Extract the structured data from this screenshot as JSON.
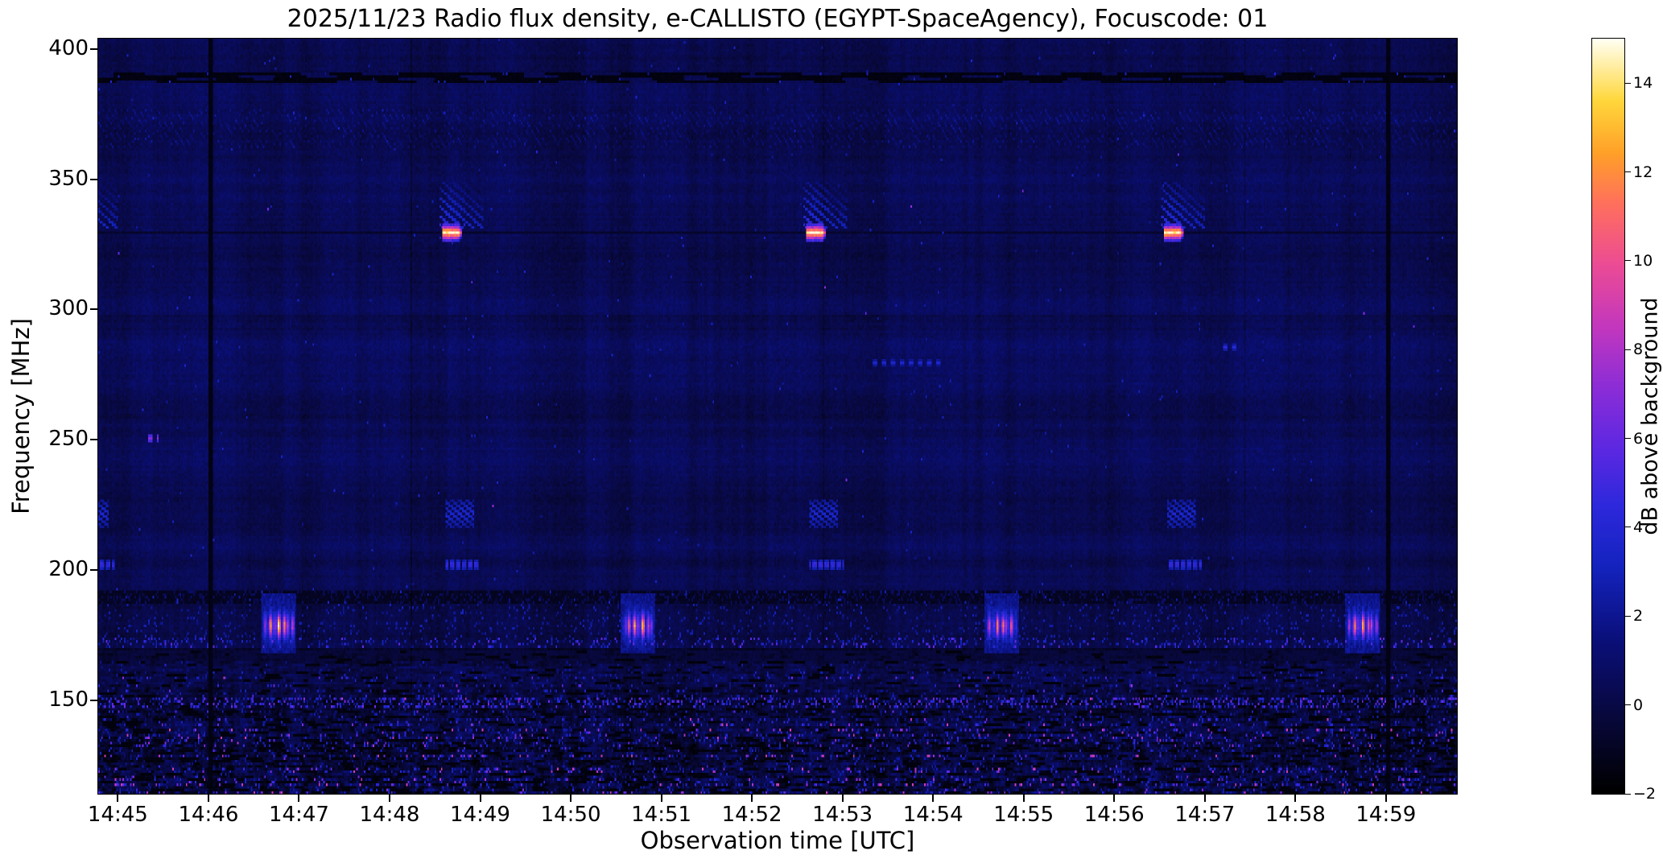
{
  "chart_data": {
    "type": "heatmap",
    "title": "2025/11/23  Radio flux density, e-CALLISTO (EGYPT-SpaceAgency), Focuscode: 01",
    "xlabel": "Observation time [UTC]",
    "ylabel": "Frequency [MHz]",
    "colorbar_label": "dB above background",
    "x_range_utc": [
      "14:44:47",
      "14:59:47"
    ],
    "x_ticks": [
      "14:45",
      "14:46",
      "14:47",
      "14:48",
      "14:49",
      "14:50",
      "14:51",
      "14:52",
      "14:53",
      "14:54",
      "14:55",
      "14:56",
      "14:57",
      "14:58",
      "14:59"
    ],
    "y_range_mhz": [
      404,
      114
    ],
    "y_ticks_mhz": [
      400,
      350,
      300,
      250,
      200,
      150
    ],
    "value_range_db": [
      -2,
      15
    ],
    "background_db": 0.3,
    "colorbar_ticks_db": [
      -2,
      0,
      2,
      4,
      6,
      8,
      10,
      12,
      14
    ],
    "colorbar_tick_labels": [
      "−2",
      "0",
      "2",
      "4",
      "6",
      "8",
      "10",
      "12",
      "14"
    ],
    "colormap_stops": [
      [
        0.0,
        0,
        0,
        0
      ],
      [
        0.1,
        8,
        8,
        60
      ],
      [
        0.2,
        10,
        15,
        120
      ],
      [
        0.3,
        20,
        35,
        190
      ],
      [
        0.38,
        45,
        40,
        220
      ],
      [
        0.46,
        95,
        40,
        225
      ],
      [
        0.54,
        140,
        45,
        215
      ],
      [
        0.62,
        195,
        55,
        190
      ],
      [
        0.7,
        235,
        75,
        150
      ],
      [
        0.78,
        255,
        110,
        95
      ],
      [
        0.85,
        255,
        160,
        40
      ],
      [
        0.92,
        255,
        215,
        60
      ],
      [
        1.0,
        255,
        255,
        240
      ]
    ],
    "features": {
      "persistent_line_mhz": 330,
      "calibration_sweeps_330mhz": {
        "start_times_utc": [
          "14:44:33",
          "14:48:35",
          "14:52:36",
          "14:56:33"
        ],
        "core_band_mhz": [
          327,
          333
        ],
        "core_peak_db": 15,
        "core_duration_s": 12,
        "comb_band_mhz": [
          331,
          349
        ],
        "comb_duration_s": 26,
        "echo_band1_mhz": [
          217,
          227
        ],
        "echo_band2_mhz": [
          201,
          204
        ],
        "echo_db": 4.5
      },
      "striated_bursts_178mhz": {
        "start_times_utc": [
          "14:46:35",
          "14:50:33",
          "14:54:34",
          "14:58:33"
        ],
        "band_mhz": [
          169,
          191
        ],
        "center_mhz": 179,
        "peak_db": [
          12.8,
          12.0,
          10.5,
          11.5
        ],
        "duration_s": 22
      },
      "dark_vertical_lines_utc": [
        "14:46:01",
        "14:59:01"
      ],
      "faint_vertical_lines_utc": [
        "14:48:14",
        "14:52:47",
        "14:57:26"
      ],
      "dark_horizontal_bands_mhz": [
        [
          388,
          391
        ],
        [
          188,
          192
        ],
        [
          167,
          171
        ]
      ],
      "dotted_texture_band_mhz": [
        363,
        377
      ],
      "noise_floor_top_mhz": 170,
      "noise_floor_max_db": 9,
      "minor_marks": [
        {
          "utc": "14:45:20",
          "mhz": 251,
          "len_s": 6,
          "db": 6.5
        },
        {
          "utc": "14:53:20",
          "mhz": 280,
          "len_s": 45,
          "db": 3.2
        },
        {
          "utc": "14:57:12",
          "mhz": 286,
          "len_s": 8,
          "db": 3.5
        }
      ]
    }
  }
}
